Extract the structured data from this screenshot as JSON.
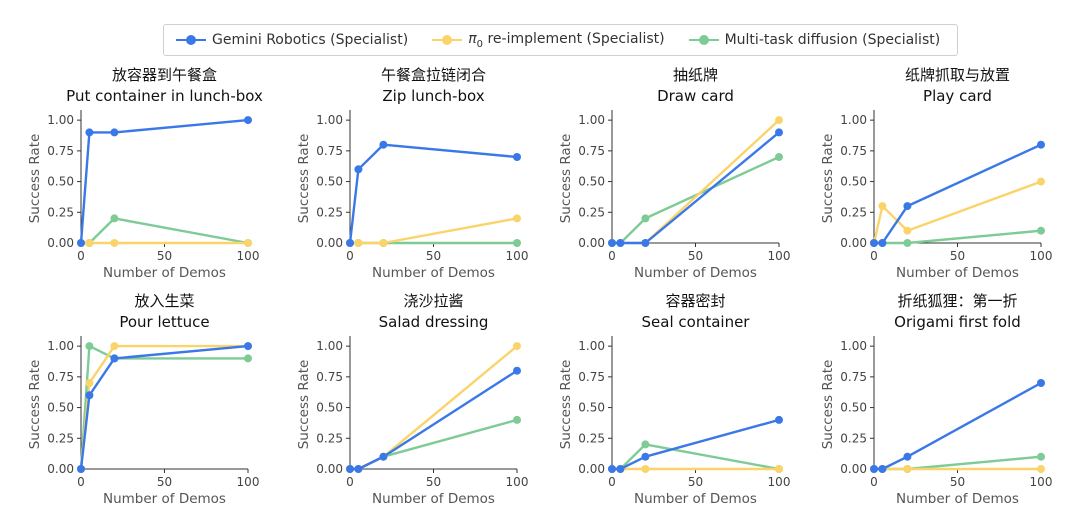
{
  "legend": {
    "items": [
      {
        "label": "Gemini Robotics (Specialist)",
        "color": "#3b78e7"
      },
      {
        "label_prefix": "π",
        "label_sub": "0",
        "label_suffix": " re-implement (Specialist)",
        "color": "#fad46b"
      },
      {
        "label": "Multi-task diffusion (Specialist)",
        "color": "#7ecb96"
      }
    ]
  },
  "chart_data": [
    {
      "type": "line",
      "title_zh": "放容器到午餐盒",
      "title": "Put container in lunch-box",
      "xlabel": "Number of Demos",
      "ylabel": "Success Rate",
      "xlim": [
        0,
        100
      ],
      "ylim": [
        0,
        1.05
      ],
      "xticks": [
        0,
        50,
        100
      ],
      "yticks": [
        "0.00",
        "0.25",
        "0.50",
        "0.75",
        "1.00"
      ],
      "series": [
        {
          "name": "Multi-task diffusion (Specialist)",
          "x": [
            0,
            5,
            20,
            100
          ],
          "y": [
            0.0,
            0.0,
            0.2,
            0.0
          ]
        },
        {
          "name": "π0 re-implement (Specialist)",
          "x": [
            0,
            5,
            20,
            100
          ],
          "y": [
            0.0,
            0.0,
            0.0,
            0.0
          ]
        },
        {
          "name": "Gemini Robotics (Specialist)",
          "x": [
            0,
            5,
            20,
            100
          ],
          "y": [
            0.0,
            0.9,
            0.9,
            1.0
          ]
        }
      ]
    },
    {
      "type": "line",
      "title_zh": "午餐盒拉链闭合",
      "title": "Zip lunch-box",
      "xlabel": "Number of Demos",
      "ylabel": "Success Rate",
      "xlim": [
        0,
        100
      ],
      "ylim": [
        0,
        1.05
      ],
      "xticks": [
        0,
        50,
        100
      ],
      "yticks": [
        "0.00",
        "0.25",
        "0.50",
        "0.75",
        "1.00"
      ],
      "series": [
        {
          "name": "Multi-task diffusion (Specialist)",
          "x": [
            0,
            5,
            20,
            100
          ],
          "y": [
            0.0,
            0.0,
            0.0,
            0.0
          ]
        },
        {
          "name": "π0 re-implement (Specialist)",
          "x": [
            0,
            5,
            20,
            100
          ],
          "y": [
            0.0,
            0.0,
            0.0,
            0.2
          ]
        },
        {
          "name": "Gemini Robotics (Specialist)",
          "x": [
            0,
            5,
            20,
            100
          ],
          "y": [
            0.0,
            0.6,
            0.8,
            0.7
          ]
        }
      ]
    },
    {
      "type": "line",
      "title_zh": "抽纸牌",
      "title": "Draw card",
      "xlabel": "Number of Demos",
      "ylabel": "Success Rate",
      "xlim": [
        0,
        100
      ],
      "ylim": [
        0,
        1.05
      ],
      "xticks": [
        0,
        50,
        100
      ],
      "yticks": [
        "0.00",
        "0.25",
        "0.50",
        "0.75",
        "1.00"
      ],
      "series": [
        {
          "name": "Multi-task diffusion (Specialist)",
          "x": [
            0,
            5,
            20,
            100
          ],
          "y": [
            0.0,
            0.0,
            0.2,
            0.7
          ]
        },
        {
          "name": "π0 re-implement (Specialist)",
          "x": [
            0,
            5,
            20,
            100
          ],
          "y": [
            0.0,
            0.0,
            0.0,
            1.0
          ]
        },
        {
          "name": "Gemini Robotics (Specialist)",
          "x": [
            0,
            5,
            20,
            100
          ],
          "y": [
            0.0,
            0.0,
            0.0,
            0.9
          ]
        }
      ]
    },
    {
      "type": "line",
      "title_zh": "纸牌抓取与放置",
      "title": "Play card",
      "xlabel": "Number of Demos",
      "ylabel": "Success Rate",
      "xlim": [
        0,
        100
      ],
      "ylim": [
        0,
        1.05
      ],
      "xticks": [
        0,
        50,
        100
      ],
      "yticks": [
        "0.00",
        "0.25",
        "0.50",
        "0.75",
        "1.00"
      ],
      "series": [
        {
          "name": "Multi-task diffusion (Specialist)",
          "x": [
            0,
            5,
            20,
            100
          ],
          "y": [
            0.0,
            0.0,
            0.0,
            0.1
          ]
        },
        {
          "name": "π0 re-implement (Specialist)",
          "x": [
            0,
            5,
            20,
            100
          ],
          "y": [
            0.0,
            0.3,
            0.1,
            0.5
          ]
        },
        {
          "name": "Gemini Robotics (Specialist)",
          "x": [
            0,
            5,
            20,
            100
          ],
          "y": [
            0.0,
            0.0,
            0.3,
            0.8
          ]
        }
      ]
    },
    {
      "type": "line",
      "title_zh": "放入生菜",
      "title": "Pour lettuce",
      "xlabel": "Number of Demos",
      "ylabel": "Success Rate",
      "xlim": [
        0,
        100
      ],
      "ylim": [
        0,
        1.05
      ],
      "xticks": [
        0,
        50,
        100
      ],
      "yticks": [
        "0.00",
        "0.25",
        "0.50",
        "0.75",
        "1.00"
      ],
      "series": [
        {
          "name": "Multi-task diffusion (Specialist)",
          "x": [
            0,
            5,
            20,
            100
          ],
          "y": [
            0.0,
            1.0,
            0.9,
            0.9
          ]
        },
        {
          "name": "π0 re-implement (Specialist)",
          "x": [
            0,
            5,
            20,
            100
          ],
          "y": [
            0.0,
            0.7,
            1.0,
            1.0
          ]
        },
        {
          "name": "Gemini Robotics (Specialist)",
          "x": [
            0,
            5,
            20,
            100
          ],
          "y": [
            0.0,
            0.6,
            0.9,
            1.0
          ]
        }
      ]
    },
    {
      "type": "line",
      "title_zh": "浇沙拉酱",
      "title": "Salad dressing",
      "xlabel": "Number of Demos",
      "ylabel": "Success Rate",
      "xlim": [
        0,
        100
      ],
      "ylim": [
        0,
        1.05
      ],
      "xticks": [
        0,
        50,
        100
      ],
      "yticks": [
        "0.00",
        "0.25",
        "0.50",
        "0.75",
        "1.00"
      ],
      "series": [
        {
          "name": "Multi-task diffusion (Specialist)",
          "x": [
            0,
            5,
            20,
            100
          ],
          "y": [
            0.0,
            0.0,
            0.1,
            0.4
          ]
        },
        {
          "name": "π0 re-implement (Specialist)",
          "x": [
            0,
            5,
            20,
            100
          ],
          "y": [
            0.0,
            0.0,
            0.1,
            1.0
          ]
        },
        {
          "name": "Gemini Robotics (Specialist)",
          "x": [
            0,
            5,
            20,
            100
          ],
          "y": [
            0.0,
            0.0,
            0.1,
            0.8
          ]
        }
      ]
    },
    {
      "type": "line",
      "title_zh": "容器密封",
      "title": "Seal container",
      "xlabel": "Number of Demos",
      "ylabel": "Success Rate",
      "xlim": [
        0,
        100
      ],
      "ylim": [
        0,
        1.05
      ],
      "xticks": [
        0,
        50,
        100
      ],
      "yticks": [
        "0.00",
        "0.25",
        "0.50",
        "0.75",
        "1.00"
      ],
      "series": [
        {
          "name": "Multi-task diffusion (Specialist)",
          "x": [
            0,
            5,
            20,
            100
          ],
          "y": [
            0.0,
            0.0,
            0.2,
            0.0
          ]
        },
        {
          "name": "π0 re-implement (Specialist)",
          "x": [
            0,
            5,
            20,
            100
          ],
          "y": [
            0.0,
            0.0,
            0.0,
            0.0
          ]
        },
        {
          "name": "Gemini Robotics (Specialist)",
          "x": [
            0,
            5,
            20,
            100
          ],
          "y": [
            0.0,
            0.0,
            0.1,
            0.4
          ]
        }
      ]
    },
    {
      "type": "line",
      "title_zh": "折纸狐狸：第一折",
      "title": "Origami first fold",
      "xlabel": "Number of Demos",
      "ylabel": "Success Rate",
      "xlim": [
        0,
        100
      ],
      "ylim": [
        0,
        1.05
      ],
      "xticks": [
        0,
        50,
        100
      ],
      "yticks": [
        "0.00",
        "0.25",
        "0.50",
        "0.75",
        "1.00"
      ],
      "series": [
        {
          "name": "Multi-task diffusion (Specialist)",
          "x": [
            0,
            5,
            20,
            100
          ],
          "y": [
            0.0,
            0.0,
            0.0,
            0.1
          ]
        },
        {
          "name": "π0 re-implement (Specialist)",
          "x": [
            0,
            5,
            20,
            100
          ],
          "y": [
            0.0,
            0.0,
            0.0,
            0.0
          ]
        },
        {
          "name": "Gemini Robotics (Specialist)",
          "x": [
            0,
            5,
            20,
            100
          ],
          "y": [
            0.0,
            0.0,
            0.1,
            0.7
          ]
        }
      ]
    }
  ],
  "series_colors": {
    "Gemini Robotics (Specialist)": "#3b78e7",
    "π0 re-implement (Specialist)": "#fad46b",
    "Multi-task diffusion (Specialist)": "#7ecb96"
  }
}
